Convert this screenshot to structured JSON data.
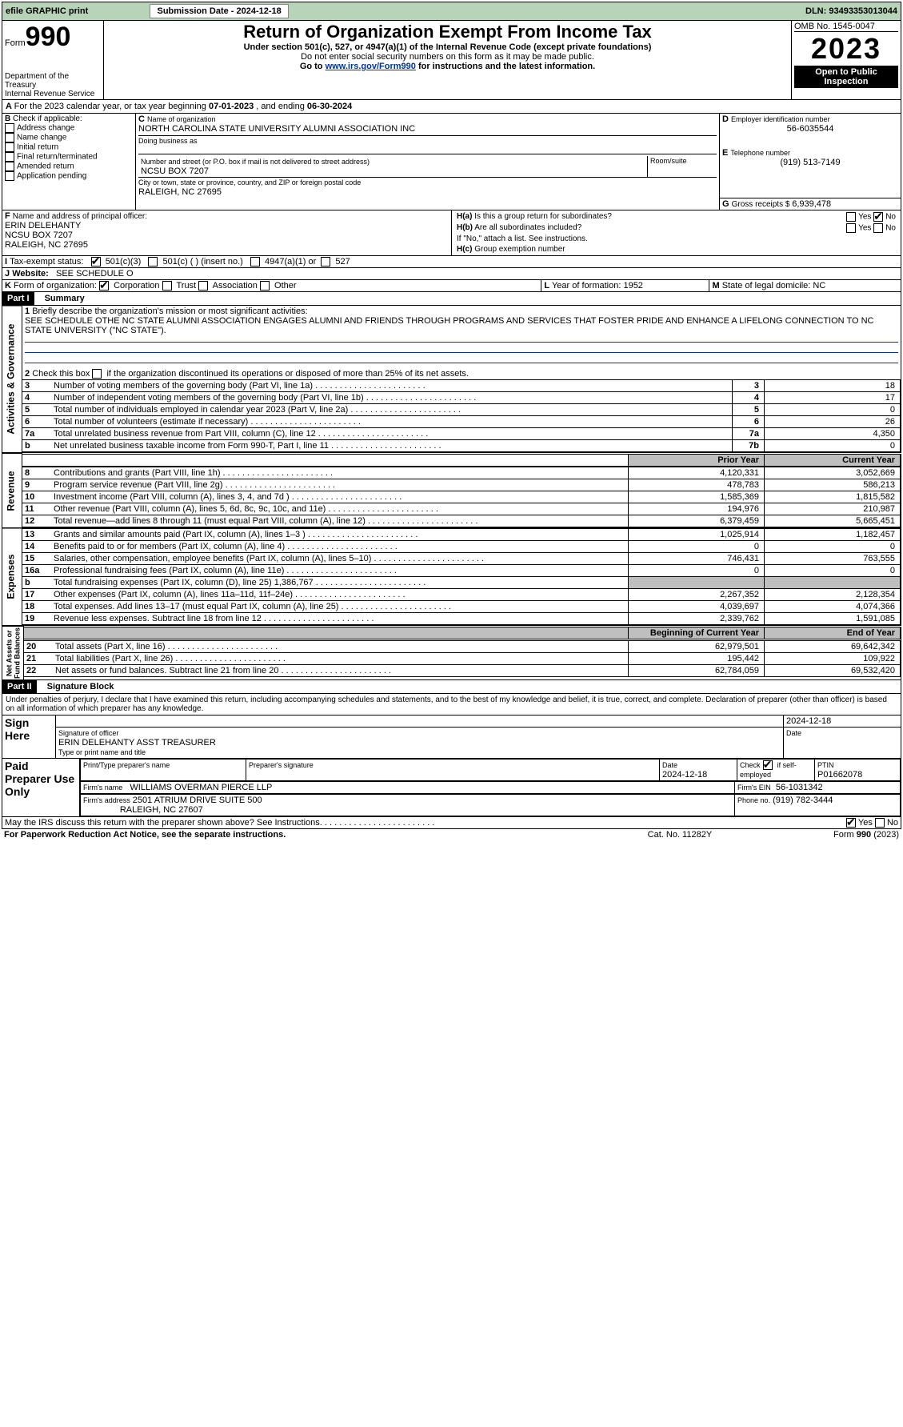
{
  "topbar": {
    "efile": "efile GRAPHIC print",
    "subdate_label": "Submission Date - 2024-12-18",
    "dln_label": "DLN: 93493353013044"
  },
  "header": {
    "form": "Form",
    "form_no": "990",
    "dept": "Department of the Treasury\nInternal Revenue Service",
    "title": "Return of Organization Exempt From Income Tax",
    "subtitle": "Under section 501(c), 527, or 4947(a)(1) of the Internal Revenue Code (except private foundations)",
    "ssn": "Do not enter social security numbers on this form as it may be made public.",
    "goto": "Go to ",
    "goto_url": "www.irs.gov/Form990",
    "goto_tail": " for instructions and the latest information.",
    "omb": "OMB No. 1545-0047",
    "year": "2023",
    "open": "Open to Public\nInspection"
  },
  "lineA": {
    "text": "For the 2023 calendar year, or tax year beginning ",
    "beg": "07-01-2023",
    "mid": " , and ending ",
    "end": "06-30-2024"
  },
  "boxB": {
    "label": "Check if applicable:",
    "items": [
      "Address change",
      "Name change",
      "Initial return",
      "Final return/terminated",
      "Amended return",
      "Application pending"
    ]
  },
  "boxC": {
    "name_label": "Name of organization",
    "name": "NORTH CAROLINA STATE UNIVERSITY ALUMNI ASSOCIATION INC",
    "dba_label": "Doing business as",
    "addr_label": "Number and street (or P.O. box if mail is not delivered to street address)",
    "room_label": "Room/suite",
    "addr": "NCSU BOX 7207",
    "city_label": "City or town, state or province, country, and ZIP or foreign postal code",
    "city": "RALEIGH, NC  27695"
  },
  "boxD": {
    "label": "Employer identification number",
    "val": "56-6035544"
  },
  "boxE": {
    "label": "Telephone number",
    "val": "(919) 513-7149"
  },
  "boxG": {
    "label_pre": "G",
    "label": "Gross receipts $ ",
    "val": "6,939,478"
  },
  "boxF": {
    "label": "Name and address of principal officer:",
    "lines": [
      "ERIN DELEHANTY",
      "NCSU BOX 7207",
      "RALEIGH, NC  27695"
    ]
  },
  "boxI": {
    "label": "Tax-exempt status:",
    "items": [
      "501(c)(3)",
      "501(c) (  ) (insert no.)",
      "4947(a)(1) or",
      "527"
    ],
    "checked": 0
  },
  "boxJ": {
    "label": "Website:",
    "val": "SEE SCHEDULE O"
  },
  "boxH": {
    "a": "Is this a group return for subordinates?",
    "a_no": true,
    "b": "Are all subordinates included?",
    "b_note": "If \"No,\" attach a list. See instructions.",
    "c": "Group exemption number"
  },
  "boxK": {
    "label": "Form of organization:",
    "items": [
      "Corporation",
      "Trust",
      "Association",
      "Other"
    ],
    "checked": 0
  },
  "boxL": {
    "label": "Year of formation: ",
    "val": "1952"
  },
  "boxM": {
    "label": "State of legal domicile: ",
    "val": "NC"
  },
  "partI": {
    "title": "Part I",
    "heading": "Summary"
  },
  "mission": {
    "label": "Briefly describe the organization's mission or most significant activities:",
    "text": "SEE SCHEDULE OTHE NC STATE ALUMNI ASSOCIATION ENGAGES ALUMNI AND FRIENDS THROUGH PROGRAMS AND SERVICES THAT FOSTER PRIDE AND ENHANCE A LIFELONG CONNECTION TO NC STATE UNIVERSITY (\"NC STATE\")."
  },
  "line2": "Check this box  if the organization discontinued its operations or disposed of more than 25% of its net assets.",
  "ag_rows": [
    {
      "n": "3",
      "t": "Number of voting members of the governing body (Part VI, line 1a)",
      "box": "3",
      "v": "18"
    },
    {
      "n": "4",
      "t": "Number of independent voting members of the governing body (Part VI, line 1b)",
      "box": "4",
      "v": "17"
    },
    {
      "n": "5",
      "t": "Total number of individuals employed in calendar year 2023 (Part V, line 2a)",
      "box": "5",
      "v": "0"
    },
    {
      "n": "6",
      "t": "Total number of volunteers (estimate if necessary)",
      "box": "6",
      "v": "26"
    },
    {
      "n": "7a",
      "t": "Total unrelated business revenue from Part VIII, column (C), line 12",
      "box": "7a",
      "v": "4,350"
    },
    {
      "n": "b",
      "t": "Net unrelated business taxable income from Form 990-T, Part I, line 11",
      "box": "7b",
      "v": "0"
    }
  ],
  "rev_head": {
    "prior": "Prior Year",
    "curr": "Current Year"
  },
  "rev_rows": [
    {
      "n": "8",
      "t": "Contributions and grants (Part VIII, line 1h)",
      "p": "4,120,331",
      "c": "3,052,669"
    },
    {
      "n": "9",
      "t": "Program service revenue (Part VIII, line 2g)",
      "p": "478,783",
      "c": "586,213"
    },
    {
      "n": "10",
      "t": "Investment income (Part VIII, column (A), lines 3, 4, and 7d )",
      "p": "1,585,369",
      "c": "1,815,582"
    },
    {
      "n": "11",
      "t": "Other revenue (Part VIII, column (A), lines 5, 6d, 8c, 9c, 10c, and 11e)",
      "p": "194,976",
      "c": "210,987"
    },
    {
      "n": "12",
      "t": "Total revenue—add lines 8 through 11 (must equal Part VIII, column (A), line 12)",
      "p": "6,379,459",
      "c": "5,665,451"
    }
  ],
  "exp_rows": [
    {
      "n": "13",
      "t": "Grants and similar amounts paid (Part IX, column (A), lines 1–3 )",
      "p": "1,025,914",
      "c": "1,182,457"
    },
    {
      "n": "14",
      "t": "Benefits paid to or for members (Part IX, column (A), line 4)",
      "p": "0",
      "c": "0"
    },
    {
      "n": "15",
      "t": "Salaries, other compensation, employee benefits (Part IX, column (A), lines 5–10)",
      "p": "746,431",
      "c": "763,555"
    },
    {
      "n": "16a",
      "t": "Professional fundraising fees (Part IX, column (A), line 11e)",
      "p": "0",
      "c": "0"
    },
    {
      "n": "b",
      "t": "Total fundraising expenses (Part IX, column (D), line 25) 1,386,767",
      "gray": true
    },
    {
      "n": "17",
      "t": "Other expenses (Part IX, column (A), lines 11a–11d, 11f–24e)",
      "p": "2,267,352",
      "c": "2,128,354"
    },
    {
      "n": "18",
      "t": "Total expenses. Add lines 13–17 (must equal Part IX, column (A), line 25)",
      "p": "4,039,697",
      "c": "4,074,366"
    },
    {
      "n": "19",
      "t": "Revenue less expenses. Subtract line 18 from line 12",
      "p": "2,339,762",
      "c": "1,591,085"
    }
  ],
  "na_head": {
    "prior": "Beginning of Current Year",
    "curr": "End of Year"
  },
  "na_rows": [
    {
      "n": "20",
      "t": "Total assets (Part X, line 16)",
      "p": "62,979,501",
      "c": "69,642,342"
    },
    {
      "n": "21",
      "t": "Total liabilities (Part X, line 26)",
      "p": "195,442",
      "c": "109,922"
    },
    {
      "n": "22",
      "t": "Net assets or fund balances. Subtract line 21 from line 20",
      "p": "62,784,059",
      "c": "69,532,420"
    }
  ],
  "sides": {
    "ag": "Activities & Governance",
    "rev": "Revenue",
    "exp": "Expenses",
    "na": "Net Assets or\nFund Balances"
  },
  "partII": {
    "title": "Part II",
    "heading": "Signature Block"
  },
  "penalties": "Under penalties of perjury, I declare that I have examined this return, including accompanying schedules and statements, and to the best of my knowledge and belief, it is true, correct, and complete. Declaration of preparer (other than officer) is based on all information of which preparer has any knowledge.",
  "signhere": {
    "label": "Sign Here",
    "sig_label": "Signature of officer",
    "name": "ERIN DELEHANTY ASST TREASURER",
    "type_label": "Type or print name and title",
    "date_label": "Date",
    "date": "2024-12-18"
  },
  "paid": {
    "label": "Paid Preparer Use Only",
    "h_print": "Print/Type preparer's name",
    "h_sig": "Preparer's signature",
    "h_date": "Date",
    "date": "2024-12-18",
    "h_check": "Check",
    "check_txt": "if self-employed",
    "h_ptin": "PTIN",
    "ptin": "P01662078",
    "firm_label": "Firm's name",
    "firm": "WILLIAMS OVERMAN PIERCE LLP",
    "ein_label": "Firm's EIN",
    "ein": "56-1031342",
    "addr_label": "Firm's address",
    "addr1": "2501 ATRIUM DRIVE SUITE 500",
    "addr2": "RALEIGH, NC  27607",
    "phone_label": "Phone no.",
    "phone": "(919) 782-3444"
  },
  "discuss": "May the IRS discuss this return with the preparer shown above? See Instructions.",
  "footer": {
    "left": "For Paperwork Reduction Act Notice, see the separate instructions.",
    "mid": "Cat. No. 11282Y",
    "right": "Form 990 (2023)"
  }
}
